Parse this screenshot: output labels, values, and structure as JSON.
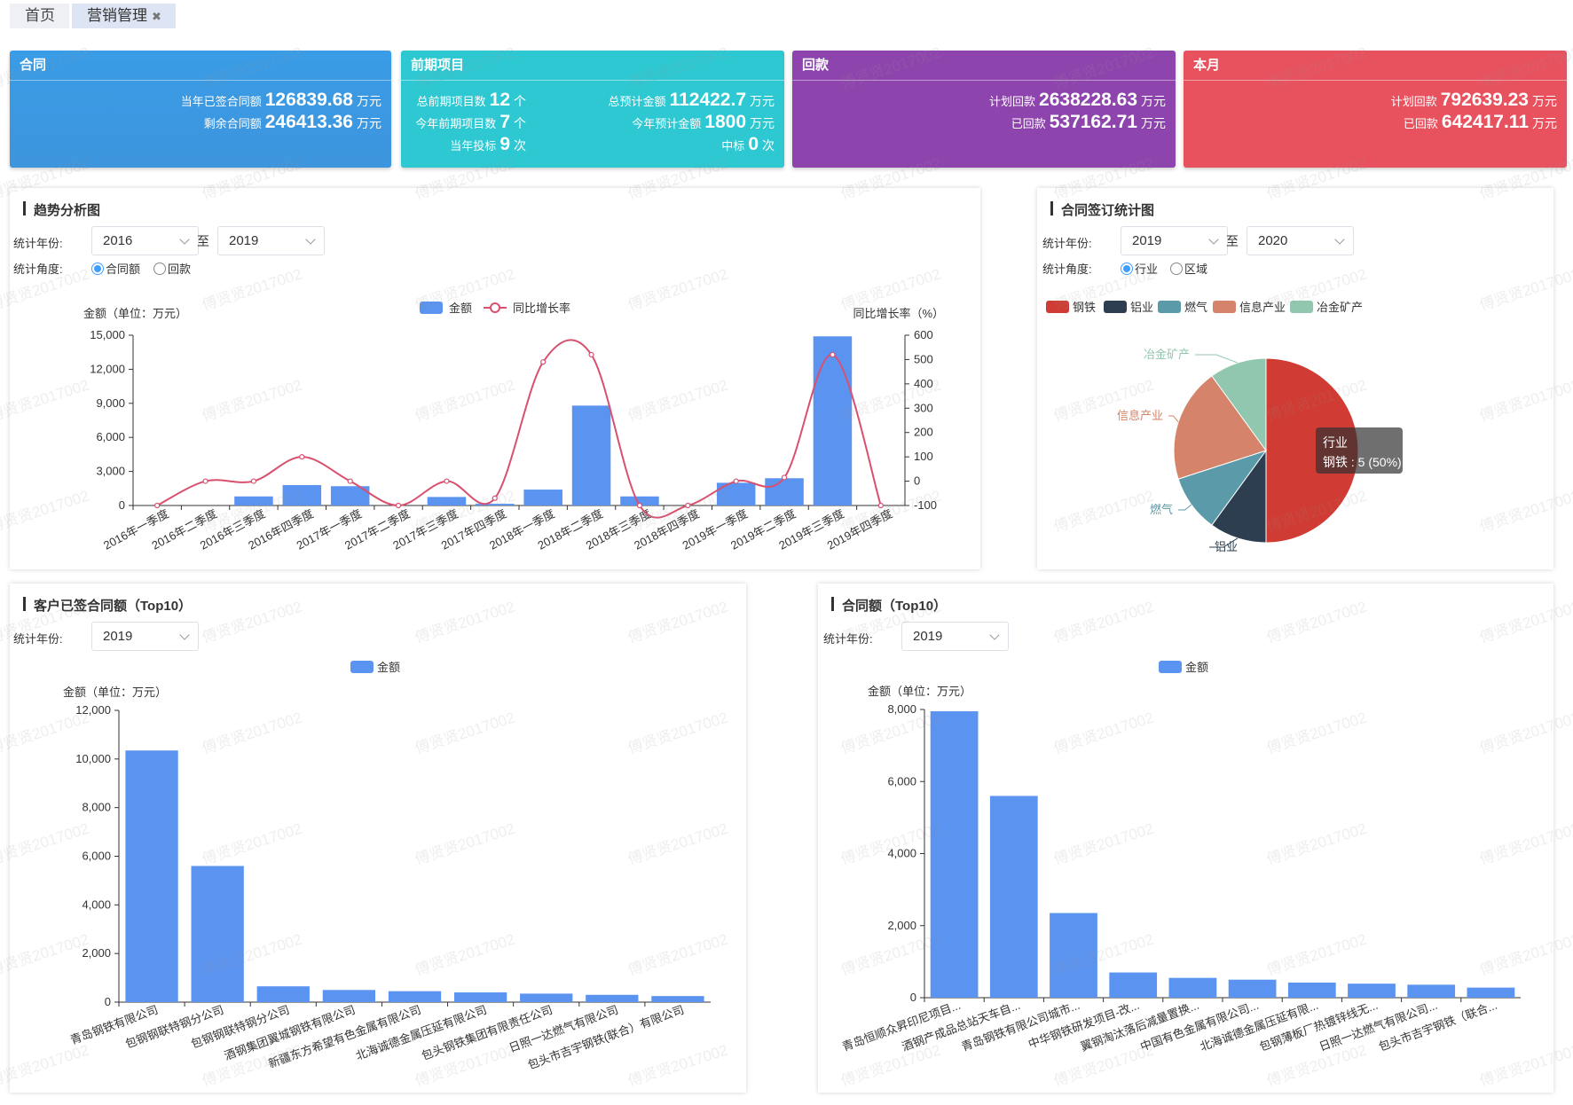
{
  "tabs": [
    {
      "label": "首页"
    },
    {
      "label": "营销管理",
      "close": "✖"
    }
  ],
  "colors": {
    "blue": "#3b9ae3",
    "cyan": "#2ec8d2",
    "purple": "#8e44ad",
    "red": "#e8525e",
    "bar": "#5b93f0",
    "line": "#d9506f",
    "pie": [
      "#d03b33",
      "#2c3e50",
      "#5b9aa8",
      "#d5836a",
      "#91c7ae"
    ]
  },
  "cards": {
    "contract": {
      "title": "合同",
      "signed_label": "当年已签合同额",
      "signed_value": "126839.68",
      "signed_unit": "万元",
      "remain_label": "剩余合同额",
      "remain_value": "246413.36",
      "remain_unit": "万元"
    },
    "project": {
      "title": "前期项目",
      "total_label": "总前期项目数",
      "total_value": "12",
      "total_unit": "个",
      "year_label": "今年前期项目数",
      "year_value": "7",
      "year_unit": "个",
      "bid_label": "当年投标",
      "bid_value": "9",
      "bid_unit": "次",
      "est_label": "总预计金额",
      "est_value": "112422.7",
      "est_unit": "万元",
      "year_est_label": "今年预计金额",
      "year_est_value": "1800",
      "year_est_unit": "万元",
      "win_label": "中标",
      "win_value": "0",
      "win_unit": "次"
    },
    "payment": {
      "title": "回款",
      "plan_label": "计划回款",
      "plan_value": "2638228.63",
      "plan_unit": "万元",
      "done_label": "已回款",
      "done_value": "537162.71",
      "done_unit": "万元"
    },
    "month": {
      "title": "本月",
      "plan_label": "计划回款",
      "plan_value": "792639.23",
      "plan_unit": "万元",
      "done_label": "已回款",
      "done_value": "642417.11",
      "done_unit": "万元"
    }
  },
  "trend": {
    "title": "趋势分析图",
    "year_label": "统计年份:",
    "from": "2016",
    "to_word": "至",
    "to": "2019",
    "angle_label": "统计角度:",
    "radio1": "合同额",
    "radio2": "回款"
  },
  "sign": {
    "title": "合同签订统计图",
    "year_label": "统计年份:",
    "from": "2019",
    "to_word": "至",
    "to": "2020",
    "angle_label": "统计角度:",
    "radio1": "行业",
    "radio2": "区域"
  },
  "cust": {
    "title": "客户已签合同额（Top10）",
    "year_label": "统计年份:",
    "year": "2019"
  },
  "amount": {
    "title": "合同额（Top10）",
    "year_label": "统计年份:",
    "year": "2019"
  },
  "watermark": "傅贤贤2017002",
  "chart_data": [
    {
      "type": "bar",
      "title": "",
      "ylabel": "金额（单位：万元）",
      "y2label": "同比增长率（%）",
      "legend": [
        "金额",
        "同比增长率"
      ],
      "categories": [
        "2016年一季度",
        "2016年二季度",
        "2016年三季度",
        "2016年四季度",
        "2017年一季度",
        "2017年二季度",
        "2017年三季度",
        "2017年四季度",
        "2018年一季度",
        "2018年二季度",
        "2018年三季度",
        "2018年四季度",
        "2019年一季度",
        "2019年二季度",
        "2019年三季度",
        "2019年四季度"
      ],
      "series": [
        {
          "name": "金额",
          "type": "bar",
          "values": [
            0,
            0,
            800,
            1800,
            1700,
            0,
            750,
            150,
            1400,
            8800,
            800,
            0,
            2000,
            2400,
            14900,
            0
          ]
        },
        {
          "name": "同比增长率",
          "type": "line",
          "values": [
            -100,
            0,
            0,
            100,
            0,
            -100,
            0,
            -70,
            490,
            520,
            -100,
            -100,
            0,
            15,
            520,
            -100
          ]
        }
      ],
      "ylim": [
        0,
        15000
      ],
      "yticks": [
        "0",
        "3,000",
        "6,000",
        "9,000",
        "12,000",
        "15,000"
      ],
      "y2lim": [
        -100,
        600
      ],
      "y2ticks": [
        "-100",
        "0",
        "100",
        "200",
        "300",
        "400",
        "500",
        "600"
      ]
    },
    {
      "type": "pie",
      "legend": [
        "钢铁",
        "铝业",
        "燃气",
        "信息产业",
        "冶金矿产"
      ],
      "values": [
        5,
        1,
        1,
        2,
        1
      ],
      "labels": [
        "钢铁",
        "铝业",
        "燃气",
        "信息产业",
        "冶金矿产"
      ],
      "tooltip": {
        "title": "行业",
        "text": "钢铁 : 5 (50%)"
      }
    },
    {
      "type": "bar",
      "ylabel": "金额（单位：万元）",
      "legend": [
        "金额"
      ],
      "categories": [
        "青岛钢铁有限公司",
        "包钢钢联特钢分公司",
        "包钢钢联特钢分公司",
        "酒钢集团翼城钢铁有限公司",
        "新疆东方希望有色金属有限公司",
        "北海诚德金属压延有限公司",
        "包头钢铁集团有限责任公司",
        "日照一达燃气有限公司",
        "包头市吉宇钢铁(联合）有限公司"
      ],
      "values": [
        10350,
        5600,
        650,
        500,
        450,
        400,
        350,
        300,
        250
      ],
      "ylim": [
        0,
        12000
      ],
      "yticks": [
        "0",
        "2,000",
        "4,000",
        "6,000",
        "8,000",
        "10,000",
        "12,000"
      ]
    },
    {
      "type": "bar",
      "ylabel": "金额（单位：万元）",
      "legend": [
        "金额"
      ],
      "categories": [
        "青岛恒顺众昇印尼项目...",
        "酒钢产成品总站天车自...",
        "青岛钢铁有限公司城市...",
        "中华钢铁研发项目-改...",
        "翼钢淘汰落后减量置换...",
        "中国有色金属有限公司...",
        "北海诚德金属压延有限...",
        "包钢薄板厂热镀锌线无...",
        "日照一达燃气有限公司...",
        "包头市吉宇钢铁（联合..."
      ],
      "values": [
        7950,
        5600,
        2350,
        700,
        550,
        500,
        420,
        390,
        360,
        280
      ],
      "ylim": [
        0,
        8000
      ],
      "yticks": [
        "0",
        "2,000",
        "4,000",
        "6,000",
        "8,000"
      ]
    }
  ]
}
